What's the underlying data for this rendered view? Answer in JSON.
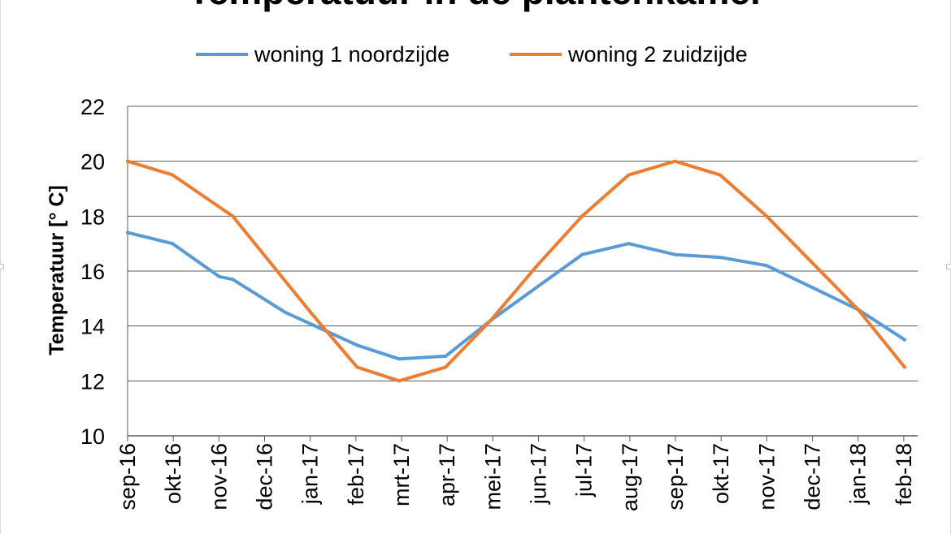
{
  "chart_data": {
    "type": "line",
    "title": "Temperatuur in de plantenkamer",
    "ylabel": "Temperatuur [° C]",
    "xlabel": "",
    "ylim": [
      10,
      22
    ],
    "y_ticks": [
      "10",
      "12",
      "14",
      "16",
      "18",
      "20",
      "22"
    ],
    "grid": true,
    "legend_position": "top",
    "categories": [
      "sep-16",
      "okt-16",
      "nov-16",
      "dec-16",
      "jan-17",
      "feb-17",
      "mrt-17",
      "apr-17",
      "mei-17",
      "jun-17",
      "jul-17",
      "aug-17",
      "sep-17",
      "okt-17",
      "nov-17",
      "dec-17",
      "jan-18",
      "feb-18"
    ],
    "series": [
      {
        "name": "woning 1 noordzijde",
        "color": "#5b9bd5",
        "points": [
          {
            "x": "2016-09-01",
            "y": 17.4
          },
          {
            "x": "2016-10-01",
            "y": 17.0
          },
          {
            "x": "2016-11-01",
            "y": 15.8
          },
          {
            "x": "2016-11-10",
            "y": 15.7
          },
          {
            "x": "2016-12-15",
            "y": 14.5
          },
          {
            "x": "2017-02-01",
            "y": 13.3
          },
          {
            "x": "2017-03-01",
            "y": 12.8
          },
          {
            "x": "2017-04-01",
            "y": 12.9
          },
          {
            "x": "2017-05-01",
            "y": 14.2
          },
          {
            "x": "2017-07-01",
            "y": 16.6
          },
          {
            "x": "2017-08-01",
            "y": 17.0
          },
          {
            "x": "2017-09-01",
            "y": 16.6
          },
          {
            "x": "2017-10-01",
            "y": 16.5
          },
          {
            "x": "2017-11-01",
            "y": 16.2
          },
          {
            "x": "2018-01-01",
            "y": 14.6
          },
          {
            "x": "2018-02-01",
            "y": 13.5
          }
        ]
      },
      {
        "name": "woning 2 zuidzijde",
        "color": "#ed7d31",
        "points": [
          {
            "x": "2016-09-01",
            "y": 20.0
          },
          {
            "x": "2016-10-01",
            "y": 19.5
          },
          {
            "x": "2016-11-10",
            "y": 18.0
          },
          {
            "x": "2017-01-01",
            "y": 14.5
          },
          {
            "x": "2017-02-01",
            "y": 12.5
          },
          {
            "x": "2017-03-01",
            "y": 12.0
          },
          {
            "x": "2017-04-01",
            "y": 12.5
          },
          {
            "x": "2017-05-01",
            "y": 14.2
          },
          {
            "x": "2017-06-01",
            "y": 16.2
          },
          {
            "x": "2017-07-01",
            "y": 18.0
          },
          {
            "x": "2017-08-01",
            "y": 19.5
          },
          {
            "x": "2017-09-01",
            "y": 20.0
          },
          {
            "x": "2017-10-01",
            "y": 19.5
          },
          {
            "x": "2017-11-01",
            "y": 18.0
          },
          {
            "x": "2018-01-01",
            "y": 14.6
          },
          {
            "x": "2018-02-01",
            "y": 12.5
          }
        ]
      }
    ]
  }
}
